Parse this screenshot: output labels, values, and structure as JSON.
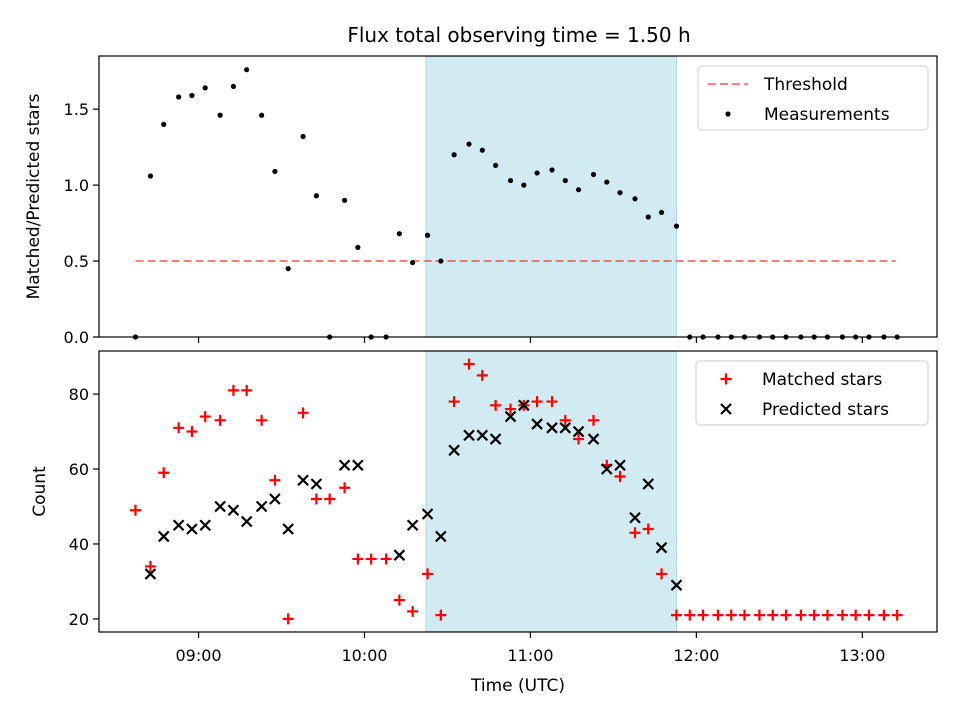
{
  "figure": {
    "title": "Flux total observing time = 1.50 h"
  },
  "chart_data": [
    {
      "type": "scatter",
      "panel": "top",
      "ylabel": "Matched/Predicted stars",
      "xlabel": "",
      "x_unit": "hours UTC",
      "xlim": [
        8.4,
        13.45
      ],
      "ylim": [
        0,
        1.85
      ],
      "yticks": [
        {
          "value": 0.0,
          "label": "0.0"
        },
        {
          "value": 0.5,
          "label": "0.5"
        },
        {
          "value": 1.0,
          "label": "1.0"
        },
        {
          "value": 1.5,
          "label": "1.5"
        }
      ],
      "highlight_band": {
        "from": 10.37,
        "to": 11.88,
        "color": "#add8e6"
      },
      "threshold": {
        "name": "Threshold",
        "value": 0.5,
        "from": 8.62,
        "to": 13.2,
        "color": "#ff0000"
      },
      "legend": {
        "placement": "top-right",
        "entries": [
          "Threshold",
          "Measurements"
        ]
      },
      "series": [
        {
          "name": "Measurements",
          "marker": "dot",
          "color": "#000000",
          "x": [
            8.62,
            8.71,
            8.79,
            8.88,
            8.96,
            9.04,
            9.13,
            9.21,
            9.29,
            9.38,
            9.46,
            9.54,
            9.63,
            9.71,
            9.79,
            9.88,
            9.96,
            10.04,
            10.13,
            10.21,
            10.29,
            10.38,
            10.46,
            10.54,
            10.63,
            10.71,
            10.79,
            10.88,
            10.96,
            11.04,
            11.13,
            11.21,
            11.29,
            11.38,
            11.46,
            11.54,
            11.63,
            11.71,
            11.79,
            11.88,
            11.96,
            12.04,
            12.13,
            12.21,
            12.29,
            12.38,
            12.46,
            12.54,
            12.63,
            12.71,
            12.79,
            12.88,
            12.96,
            13.04,
            13.13,
            13.21
          ],
          "y": [
            0.0,
            1.06,
            1.4,
            1.58,
            1.59,
            1.64,
            1.46,
            1.65,
            1.76,
            1.46,
            1.09,
            0.45,
            1.32,
            0.93,
            0.0,
            0.9,
            0.59,
            0.0,
            0.0,
            0.68,
            0.49,
            0.67,
            0.5,
            1.2,
            1.27,
            1.23,
            1.13,
            1.03,
            1.0,
            1.08,
            1.1,
            1.03,
            0.97,
            1.07,
            1.02,
            0.95,
            0.91,
            0.79,
            0.82,
            0.73,
            0.0,
            0.0,
            0.0,
            0.0,
            0.0,
            0.0,
            0.0,
            0.0,
            0.0,
            0.0,
            0.0,
            0.0,
            0.0,
            0.0,
            0.0,
            0.0
          ]
        }
      ]
    },
    {
      "type": "scatter",
      "panel": "bottom",
      "ylabel": "Count",
      "xlabel": "Time (UTC)",
      "x_unit": "hours UTC",
      "xlim": [
        8.4,
        13.45
      ],
      "ylim": [
        16.5,
        91.5
      ],
      "yticks": [
        {
          "value": 20,
          "label": "20"
        },
        {
          "value": 40,
          "label": "40"
        },
        {
          "value": 60,
          "label": "60"
        },
        {
          "value": 80,
          "label": "80"
        }
      ],
      "xticks": [
        {
          "value": 9,
          "label": "09:00"
        },
        {
          "value": 10,
          "label": "10:00"
        },
        {
          "value": 11,
          "label": "11:00"
        },
        {
          "value": 12,
          "label": "12:00"
        },
        {
          "value": 13,
          "label": "13:00"
        }
      ],
      "highlight_band": {
        "from": 10.37,
        "to": 11.88,
        "color": "#add8e6"
      },
      "legend": {
        "placement": "top-right",
        "entries": [
          "Matched stars",
          "Predicted stars"
        ]
      },
      "series": [
        {
          "name": "Matched stars",
          "marker": "plus",
          "color": "#ff0000",
          "x": [
            8.62,
            8.71,
            8.79,
            8.88,
            8.96,
            9.04,
            9.13,
            9.21,
            9.29,
            9.38,
            9.46,
            9.54,
            9.63,
            9.71,
            9.79,
            9.88,
            9.96,
            10.04,
            10.13,
            10.21,
            10.29,
            10.38,
            10.46,
            10.54,
            10.63,
            10.71,
            10.79,
            10.88,
            10.96,
            11.04,
            11.13,
            11.21,
            11.29,
            11.38,
            11.46,
            11.54,
            11.63,
            11.71,
            11.79,
            11.88,
            11.96,
            12.04,
            12.13,
            12.21,
            12.29,
            12.38,
            12.46,
            12.54,
            12.63,
            12.71,
            12.79,
            12.88,
            12.96,
            13.04,
            13.13,
            13.21
          ],
          "y": [
            49,
            34,
            59,
            71,
            70,
            74,
            73,
            81,
            81,
            73,
            57,
            20,
            75,
            52,
            52,
            55,
            36,
            36,
            36,
            25,
            22,
            32,
            21,
            78,
            88,
            85,
            77,
            76,
            77,
            78,
            78,
            73,
            68,
            73,
            61,
            58,
            43,
            44,
            32,
            21,
            21,
            21,
            21,
            21,
            21,
            21,
            21,
            21,
            21,
            21,
            21,
            21,
            21,
            21,
            21,
            21
          ]
        },
        {
          "name": "Predicted stars",
          "marker": "x",
          "color": "#000000",
          "x": [
            8.71,
            8.79,
            8.88,
            8.96,
            9.04,
            9.13,
            9.21,
            9.29,
            9.38,
            9.46,
            9.54,
            9.63,
            9.71,
            9.88,
            9.96,
            10.21,
            10.29,
            10.38,
            10.46,
            10.54,
            10.63,
            10.71,
            10.79,
            10.88,
            10.96,
            11.04,
            11.13,
            11.21,
            11.29,
            11.38,
            11.46,
            11.54,
            11.63,
            11.71,
            11.79,
            11.88
          ],
          "y": [
            32,
            42,
            45,
            44,
            45,
            50,
            49,
            46,
            50,
            52,
            44,
            57,
            56,
            61,
            61,
            37,
            45,
            48,
            42,
            65,
            69,
            69,
            68,
            74,
            77,
            72,
            71,
            71,
            70,
            68,
            60,
            61,
            47,
            56,
            39,
            29
          ]
        }
      ]
    }
  ]
}
